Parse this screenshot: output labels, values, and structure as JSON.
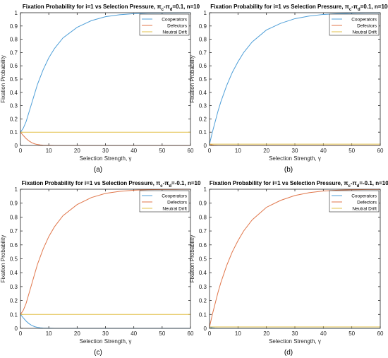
{
  "figure": {
    "colors": {
      "cooperators": "#4f9fd8",
      "defectors": "#e0764a",
      "neutral": "#e3c14a",
      "axis": "#262626",
      "grid": "#e6e6e6"
    }
  },
  "chart_data": [
    {
      "panel_label": "(a)",
      "type": "line",
      "title": "Fixation Probability for i=1 vs Selection Pressure, π_c-π_d=0.1, n=10",
      "title_parts": {
        "prefix": "Fixation Probability for i=1 vs Selection Pressure, ",
        "pi_sym": "π",
        "sub1": "c",
        "mid": "-",
        "sub2": "d",
        "suffix": "=0.1, n=10"
      },
      "xlabel": "Selection Strength, γ",
      "ylabel": "Fixation Probability",
      "xlim": [
        0,
        60
      ],
      "ylim": [
        0,
        1
      ],
      "xticks": [
        "0",
        "10",
        "20",
        "30",
        "40",
        "50",
        "60"
      ],
      "yticks": [
        "0",
        "0.1",
        "0.2",
        "0.3",
        "0.4",
        "0.5",
        "0.6",
        "0.7",
        "0.8",
        "0.9",
        "1"
      ],
      "legend": {
        "position": "top-right",
        "entries": [
          "Cooperators",
          "Defectors",
          "Neutral Drift"
        ]
      },
      "series": [
        {
          "name": "Cooperators",
          "x": [
            0,
            1,
            2,
            3,
            4,
            5,
            6,
            8,
            10,
            12,
            15,
            20,
            25,
            30,
            35,
            40,
            45,
            50,
            55,
            60
          ],
          "y": [
            0.1,
            0.13,
            0.18,
            0.25,
            0.32,
            0.39,
            0.46,
            0.57,
            0.66,
            0.73,
            0.81,
            0.89,
            0.94,
            0.97,
            0.985,
            0.993,
            0.997,
            0.998,
            0.999,
            1.0
          ]
        },
        {
          "name": "Defectors",
          "x": [
            0,
            1,
            2,
            3,
            4,
            5,
            6,
            7,
            8,
            10,
            12,
            15,
            20,
            30,
            40,
            50,
            60
          ],
          "y": [
            0.1,
            0.075,
            0.052,
            0.034,
            0.021,
            0.012,
            0.007,
            0.004,
            0.002,
            0.001,
            0.0,
            0.0,
            0.0,
            0.0,
            0.0,
            0.0,
            0.0
          ]
        },
        {
          "name": "Neutral Drift",
          "x": [
            0,
            60
          ],
          "y": [
            0.1,
            0.1
          ]
        }
      ]
    },
    {
      "panel_label": "(b)",
      "type": "line",
      "title": "Fixation Probability for i=1 vs Selection Pressure, π_c-π_d=0.1, n=100",
      "title_parts": {
        "prefix": "Fixation Probability for i=1 vs Selection Pressure, ",
        "pi_sym": "π",
        "sub1": "c",
        "mid": "-",
        "sub2": "d",
        "suffix": "=0.1, n=100"
      },
      "xlabel": "Selection Strength, γ",
      "ylabel": "Fixation Probability",
      "xlim": [
        0,
        60
      ],
      "ylim": [
        0,
        1
      ],
      "xticks": [
        "0",
        "10",
        "20",
        "30",
        "40",
        "50",
        "60"
      ],
      "yticks": [
        "0",
        "0.1",
        "0.2",
        "0.3",
        "0.4",
        "0.5",
        "0.6",
        "0.7",
        "0.8",
        "0.9",
        "1"
      ],
      "legend": {
        "position": "top-right",
        "entries": [
          "Cooperators",
          "Defectors",
          "Neutral Drift"
        ]
      },
      "series": [
        {
          "name": "Cooperators",
          "x": [
            0,
            1,
            2,
            3,
            4,
            5,
            6,
            8,
            10,
            12,
            15,
            20,
            25,
            30,
            35,
            40,
            45,
            50,
            55,
            60
          ],
          "y": [
            0.01,
            0.1,
            0.18,
            0.26,
            0.33,
            0.39,
            0.45,
            0.55,
            0.63,
            0.7,
            0.78,
            0.87,
            0.92,
            0.955,
            0.975,
            0.987,
            0.993,
            0.996,
            0.998,
            0.999
          ]
        },
        {
          "name": "Defectors",
          "x": [
            0,
            1,
            2,
            3,
            5,
            10,
            60
          ],
          "y": [
            0.01,
            0.004,
            0.001,
            0.0,
            0.0,
            0.0,
            0.0
          ]
        },
        {
          "name": "Neutral Drift",
          "x": [
            0,
            60
          ],
          "y": [
            0.01,
            0.01
          ]
        }
      ]
    },
    {
      "panel_label": "(c)",
      "type": "line",
      "title": "Fixation Probability for i=1 vs Selection Pressure, π_c-π_d=-0.1, n=10",
      "title_parts": {
        "prefix": "Fixation Probability for i=1 vs Selection Pressure, ",
        "pi_sym": "π",
        "sub1": "c",
        "mid": "-",
        "sub2": "d",
        "suffix": "=-0.1, n=10"
      },
      "xlabel": "Selection Strength, γ",
      "ylabel": "Fixation Probability",
      "xlim": [
        0,
        60
      ],
      "ylim": [
        0,
        1
      ],
      "xticks": [
        "0",
        "10",
        "20",
        "30",
        "40",
        "50",
        "60"
      ],
      "yticks": [
        "0",
        "0.1",
        "0.2",
        "0.3",
        "0.4",
        "0.5",
        "0.6",
        "0.7",
        "0.8",
        "0.9",
        "1"
      ],
      "legend": {
        "position": "top-right",
        "entries": [
          "Cooperators",
          "Defectors",
          "Neutral Drift"
        ]
      },
      "series": [
        {
          "name": "Cooperators",
          "x": [
            0,
            1,
            2,
            3,
            4,
            5,
            6,
            7,
            8,
            10,
            12,
            15,
            20,
            30,
            40,
            50,
            60
          ],
          "y": [
            0.1,
            0.075,
            0.052,
            0.034,
            0.021,
            0.012,
            0.007,
            0.004,
            0.002,
            0.001,
            0.0,
            0.0,
            0.0,
            0.0,
            0.0,
            0.0,
            0.0
          ]
        },
        {
          "name": "Defectors",
          "x": [
            0,
            1,
            2,
            3,
            4,
            5,
            6,
            8,
            10,
            12,
            15,
            20,
            25,
            30,
            35,
            40,
            45,
            50,
            55,
            60
          ],
          "y": [
            0.1,
            0.13,
            0.18,
            0.25,
            0.32,
            0.39,
            0.46,
            0.57,
            0.66,
            0.73,
            0.81,
            0.89,
            0.94,
            0.97,
            0.985,
            0.993,
            0.997,
            0.998,
            0.999,
            1.0
          ]
        },
        {
          "name": "Neutral Drift",
          "x": [
            0,
            60
          ],
          "y": [
            0.1,
            0.1
          ]
        }
      ]
    },
    {
      "panel_label": "(d)",
      "type": "line",
      "title": "Fixation Probability for i=1 vs Selection Pressure, π_c-π_d=-0.1, n=100",
      "title_parts": {
        "prefix": "Fixation Probability for i=1 vs Selection Pressure, ",
        "pi_sym": "π",
        "sub1": "c",
        "mid": "-",
        "sub2": "d",
        "suffix": "=-0.1, n=100"
      },
      "xlabel": "Selection Strength, γ",
      "ylabel": "Fixation Probability",
      "xlim": [
        0,
        60
      ],
      "ylim": [
        0,
        1
      ],
      "xticks": [
        "0",
        "10",
        "20",
        "30",
        "40",
        "50",
        "60"
      ],
      "yticks": [
        "0",
        "0.1",
        "0.2",
        "0.3",
        "0.4",
        "0.5",
        "0.6",
        "0.7",
        "0.8",
        "0.9",
        "1"
      ],
      "legend": {
        "position": "top-right",
        "entries": [
          "Cooperators",
          "Defectors",
          "Neutral Drift"
        ]
      },
      "series": [
        {
          "name": "Cooperators",
          "x": [
            0,
            1,
            2,
            3,
            5,
            10,
            60
          ],
          "y": [
            0.01,
            0.004,
            0.001,
            0.0,
            0.0,
            0.0,
            0.0
          ]
        },
        {
          "name": "Defectors",
          "x": [
            0,
            1,
            2,
            3,
            4,
            5,
            6,
            8,
            10,
            12,
            15,
            20,
            25,
            30,
            35,
            40,
            45,
            50,
            55,
            60
          ],
          "y": [
            0.01,
            0.1,
            0.18,
            0.26,
            0.33,
            0.39,
            0.45,
            0.55,
            0.63,
            0.7,
            0.78,
            0.87,
            0.92,
            0.955,
            0.975,
            0.987,
            0.993,
            0.996,
            0.998,
            0.999
          ]
        },
        {
          "name": "Neutral Drift",
          "x": [
            0,
            60
          ],
          "y": [
            0.01,
            0.01
          ]
        }
      ]
    }
  ]
}
